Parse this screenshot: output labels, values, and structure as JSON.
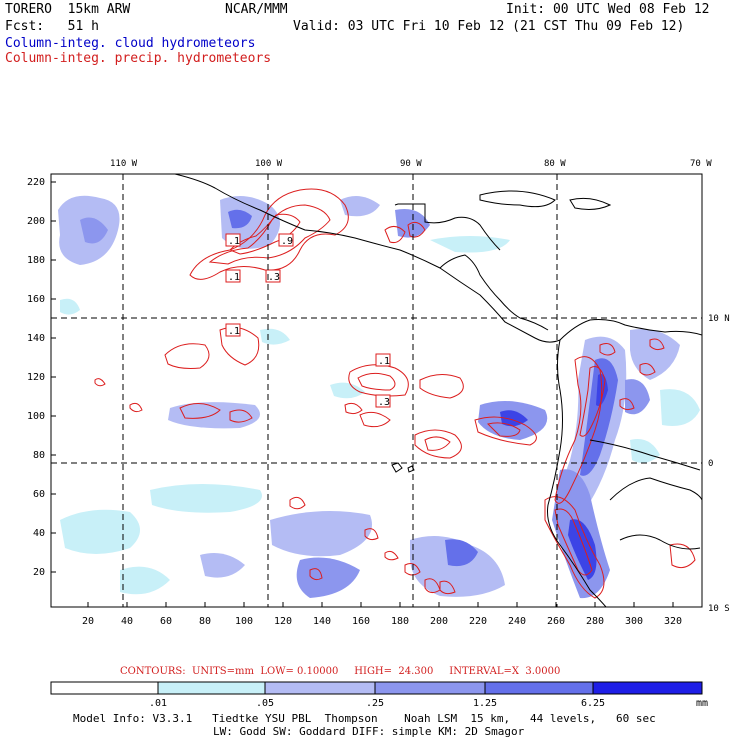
{
  "header": {
    "model": "TORERO  15km ARW",
    "org": "NCAR/MMM",
    "init": "Init: 00 UTC Wed 08 Feb 12",
    "fcst": "Fcst:   51 h",
    "valid": "Valid: 03 UTC Fri 10 Feb 12 (21 CST Thu 09 Feb 12)",
    "field_cloud": "Column-integ. cloud hydrometeors",
    "field_precip": "Column-integ. precip. hydrometeors"
  },
  "map": {
    "lon_labels": [
      "110 W",
      "100 W",
      "90 W",
      "80 W",
      "70 W"
    ],
    "lat_labels": [
      "10 N",
      "0",
      "10 S"
    ],
    "y_ticks": [
      "220",
      "200",
      "180",
      "160",
      "140",
      "120",
      "100",
      "80",
      "60",
      "40",
      "20"
    ],
    "x_ticks": [
      "20",
      "40",
      "60",
      "80",
      "100",
      "120",
      "140",
      "160",
      "180",
      "200",
      "220",
      "240",
      "260",
      "280",
      "300",
      "320"
    ],
    "contour_labels": [
      ".1",
      ".3",
      ".9",
      ".1",
      ".3",
      ".1",
      ".1",
      ".3"
    ],
    "colors": {
      "shade_light": "#c8f0f8",
      "shade_1": "#b4bcf4",
      "shade_2": "#8c96ee",
      "shade_3": "#6470ea",
      "shade_4": "#3c44e6",
      "shade_5": "#1e1ee6",
      "contour": "#dc1e1e",
      "grid": "#000000"
    }
  },
  "contour_info": {
    "label": "CONTOURS:  UNITS=mm  LOW= 0.10000     HIGH=  24.300     INTERVAL=X  3.0000"
  },
  "colorbar": {
    "ticks": [
      ".01",
      ".05",
      ".25",
      "1.25",
      "6.25"
    ],
    "unit": "mm"
  },
  "footer": {
    "line1": "Model Info: V3.3.1   Tiedtke YSU PBL  Thompson    Noah LSM  15 km,   44 levels,   60 sec",
    "line2": "LW: Godd SW: Goddard DIFF: simple KM: 2D Smagor"
  }
}
